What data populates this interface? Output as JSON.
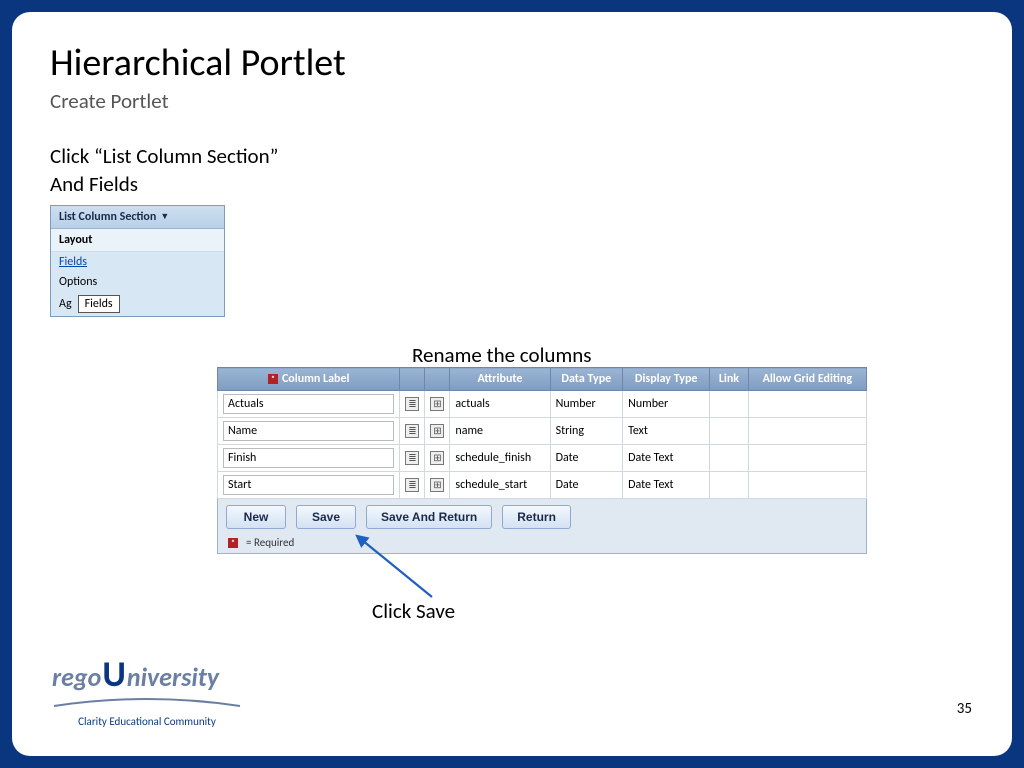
{
  "title": "Hierarchical Portlet",
  "subtitle": "Create Portlet",
  "instruction_line1": "Click “List Column Section”",
  "instruction_line2": "And Fields",
  "dropdown": {
    "header": "List Column Section",
    "section_label": "Layout",
    "link_item": "Fields",
    "options_item": "Options",
    "ag_item": "Ag",
    "tooltip": "Fields"
  },
  "rename_caption": "Rename the columns",
  "table": {
    "headers": {
      "column_label": "Column Label",
      "attribute": "Attribute",
      "data_type": "Data Type",
      "display_type": "Display Type",
      "link": "Link",
      "allow_grid": "Allow Grid Editing"
    },
    "rows": [
      {
        "label": "Actuals",
        "attr": "actuals",
        "dtype": "Number",
        "disp": "Number"
      },
      {
        "label": "Name",
        "attr": "name",
        "dtype": "String",
        "disp": "Text"
      },
      {
        "label": "Finish",
        "attr": "schedule_finish",
        "dtype": "Date",
        "disp": "Date Text"
      },
      {
        "label": "Start",
        "attr": "schedule_start",
        "dtype": "Date",
        "disp": "Date Text"
      }
    ]
  },
  "buttons": {
    "new": "New",
    "save": "Save",
    "save_return": "Save And Return",
    "return": "Return"
  },
  "required_legend": "= Required",
  "save_caption": "Click Save",
  "logo": {
    "brand_left": "rego",
    "brand_right": "niversity",
    "tagline": "Clarity Educational Community"
  },
  "page_number": "35"
}
